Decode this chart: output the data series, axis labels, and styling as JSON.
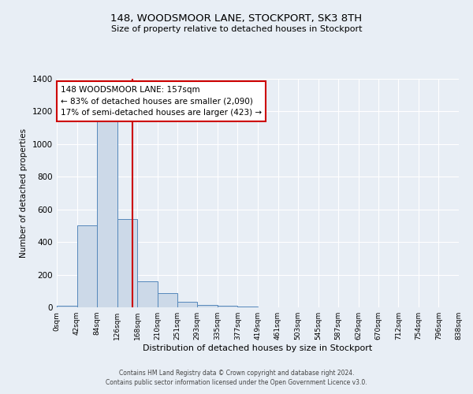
{
  "title1": "148, WOODSMOOR LANE, STOCKPORT, SK3 8TH",
  "title2": "Size of property relative to detached houses in Stockport",
  "xlabel": "Distribution of detached houses by size in Stockport",
  "ylabel": "Number of detached properties",
  "bin_edges": [
    0,
    42,
    84,
    126,
    168,
    210,
    251,
    293,
    335,
    377,
    419,
    461,
    503,
    545,
    587,
    629,
    670,
    712,
    754,
    796,
    838
  ],
  "bin_counts": [
    10,
    500,
    1150,
    540,
    160,
    85,
    35,
    15,
    10,
    5,
    0,
    0,
    0,
    0,
    0,
    0,
    0,
    0,
    0,
    0
  ],
  "property_size": 157,
  "property_line_color": "#cc0000",
  "bar_face_color": "#ccd9e8",
  "bar_edge_color": "#5588bb",
  "background_color": "#e8eef5",
  "grid_color": "#ffffff",
  "ylim": [
    0,
    1400
  ],
  "yticks": [
    0,
    200,
    400,
    600,
    800,
    1000,
    1200,
    1400
  ],
  "xtick_labels": [
    "0sqm",
    "42sqm",
    "84sqm",
    "126sqm",
    "168sqm",
    "210sqm",
    "251sqm",
    "293sqm",
    "335sqm",
    "377sqm",
    "419sqm",
    "461sqm",
    "503sqm",
    "545sqm",
    "587sqm",
    "629sqm",
    "670sqm",
    "712sqm",
    "754sqm",
    "796sqm",
    "838sqm"
  ],
  "annotation_line1": "148 WOODSMOOR LANE: 157sqm",
  "annotation_line2": "← 83% of detached houses are smaller (2,090)",
  "annotation_line3": "17% of semi-detached houses are larger (423) →",
  "annotation_box_color": "#ffffff",
  "annotation_box_edge": "#cc0000",
  "footer1": "Contains HM Land Registry data © Crown copyright and database right 2024.",
  "footer2": "Contains public sector information licensed under the Open Government Licence v3.0."
}
